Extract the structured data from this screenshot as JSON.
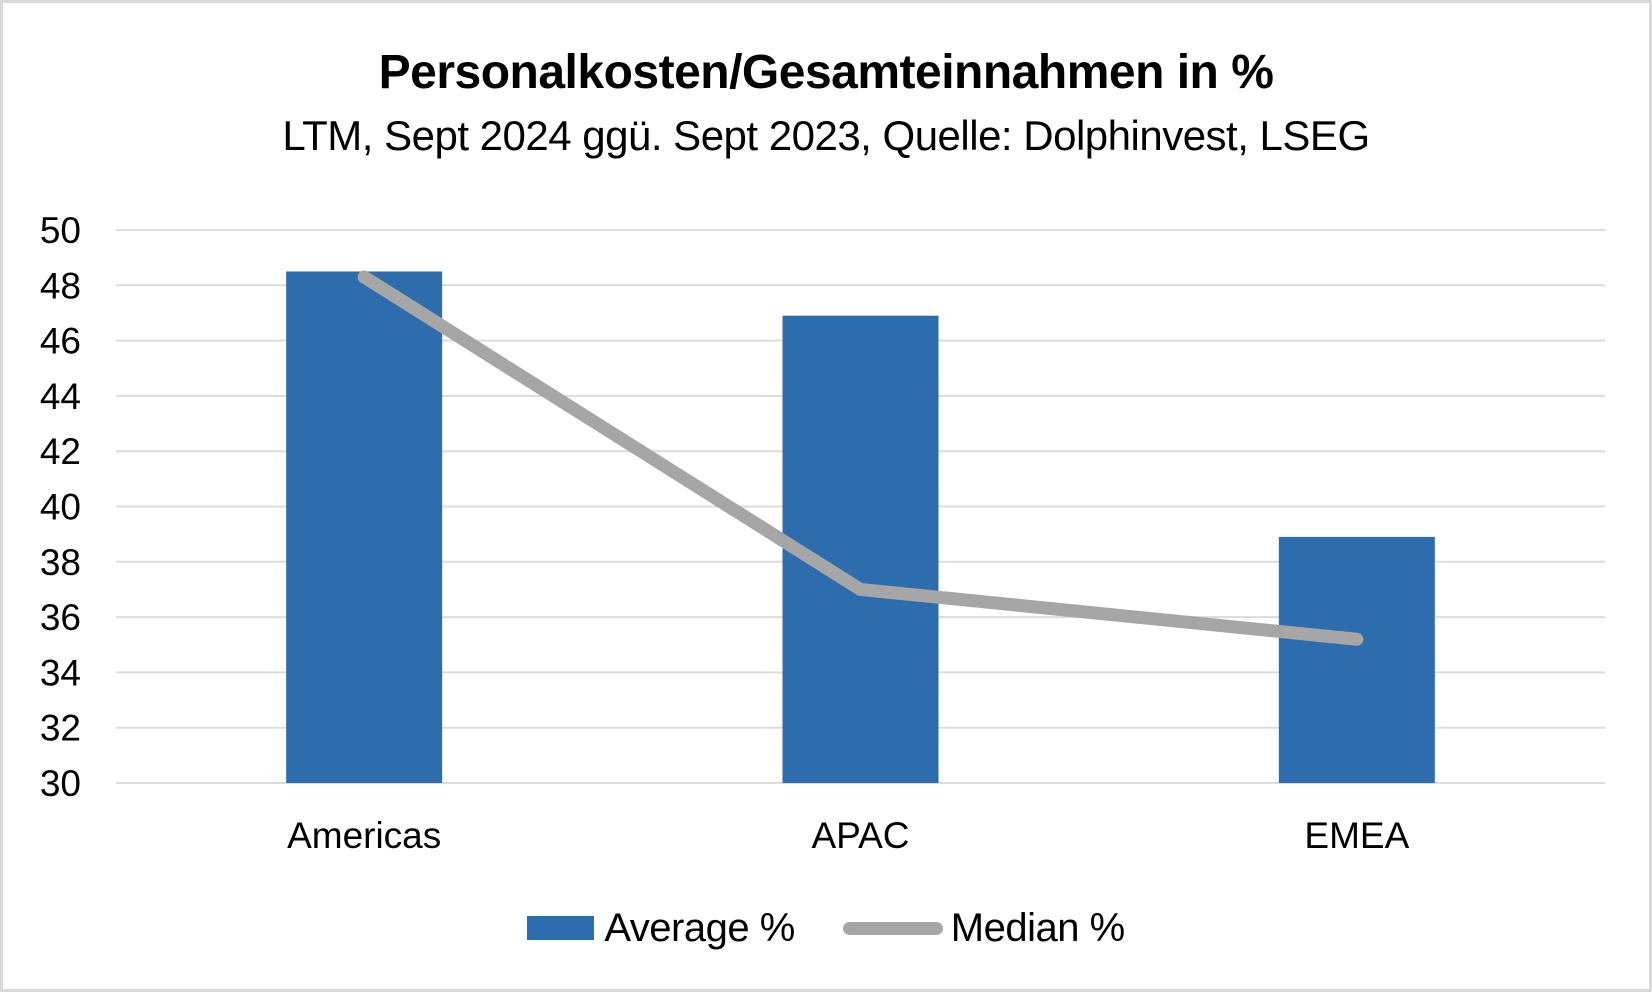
{
  "chart_data": {
    "type": "bar",
    "categories": [
      "Americas",
      "APAC",
      "EMEA"
    ],
    "series": [
      {
        "name": "Average %",
        "chart_type": "bar",
        "color": "#2e6dad",
        "values": [
          48.5,
          46.9,
          38.9
        ]
      },
      {
        "name": "Median %",
        "chart_type": "line",
        "color": "#a6a6a6",
        "values": [
          48.3,
          37.0,
          35.2
        ]
      }
    ],
    "title": "Personalkosten/Gesamteinnahmen in %",
    "subtitle": "LTM, Sept 2024 ggü. Sept 2023, Quelle: Dolphinvest, LSEG",
    "xlabel": "",
    "ylabel": "",
    "ylim": [
      30,
      50
    ],
    "ytick_step": 2,
    "yticks": [
      30,
      32,
      34,
      36,
      38,
      40,
      42,
      44,
      46,
      48,
      50
    ],
    "grid": true,
    "gridline_color": "#dcdcdc",
    "axis_text_color": "#000000",
    "background_color": "#ffffff",
    "frame_border_color": "#d9d9d9",
    "legend_position": "bottom"
  }
}
